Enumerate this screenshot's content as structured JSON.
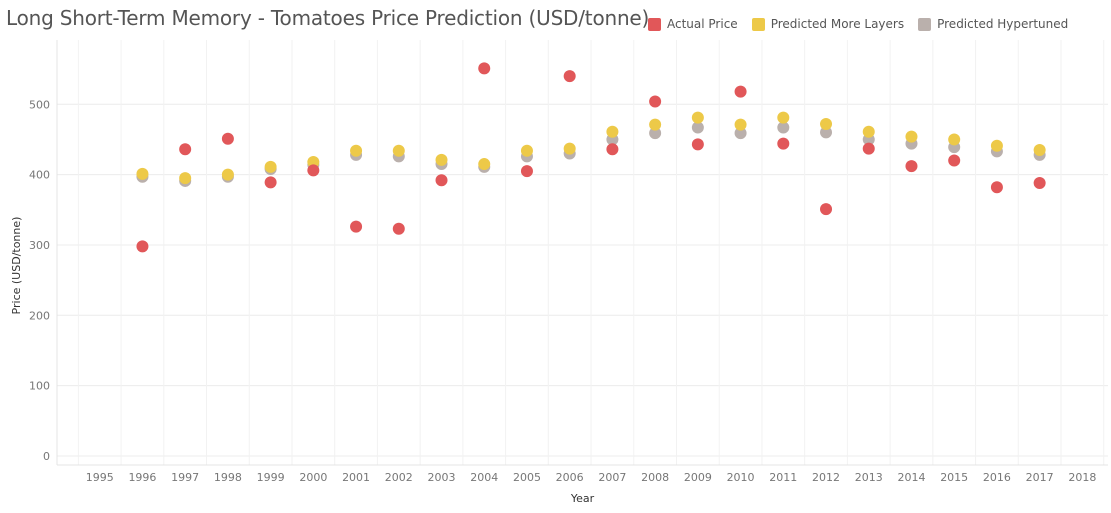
{
  "chart_data": {
    "type": "scatter",
    "title": "Long Short-Term Memory - Tomatoes Price Prediction (USD/tonne)",
    "xlabel": "Year",
    "ylabel": "Price (USD/tonne)",
    "xlim": [
      1994,
      2018.6
    ],
    "ylim": [
      -10,
      580
    ],
    "x_ticks": [
      1995,
      1996,
      1997,
      1998,
      1999,
      2000,
      2001,
      2002,
      2003,
      2004,
      2005,
      2006,
      2007,
      2008,
      2009,
      2010,
      2011,
      2012,
      2013,
      2014,
      2015,
      2016,
      2017,
      2018
    ],
    "y_ticks": [
      0,
      100,
      200,
      300,
      400,
      500
    ],
    "grid": true,
    "legend_position": "top-right",
    "series": [
      {
        "name": "Actual Price",
        "color": "#e15759",
        "points": [
          [
            1996,
            298
          ],
          [
            1997,
            436
          ],
          [
            1998,
            451
          ],
          [
            1999,
            389
          ],
          [
            2000,
            406
          ],
          [
            2001,
            326
          ],
          [
            2002,
            323
          ],
          [
            2003,
            392
          ],
          [
            2004,
            551
          ],
          [
            2005,
            405
          ],
          [
            2006,
            540
          ],
          [
            2007,
            436
          ],
          [
            2008,
            504
          ],
          [
            2009,
            443
          ],
          [
            2010,
            518
          ],
          [
            2011,
            444
          ],
          [
            2012,
            351
          ],
          [
            2013,
            437
          ],
          [
            2014,
            412
          ],
          [
            2015,
            420
          ],
          [
            2016,
            382
          ],
          [
            2017,
            388
          ]
        ]
      },
      {
        "name": "Predicted More Layers",
        "color": "#edc948",
        "points": [
          [
            1996,
            401
          ],
          [
            1997,
            395
          ],
          [
            1998,
            400
          ],
          [
            1999,
            411
          ],
          [
            2000,
            418
          ],
          [
            2001,
            434
          ],
          [
            2002,
            434
          ],
          [
            2003,
            421
          ],
          [
            2004,
            415
          ],
          [
            2005,
            434
          ],
          [
            2006,
            437
          ],
          [
            2007,
            461
          ],
          [
            2008,
            471
          ],
          [
            2009,
            481
          ],
          [
            2010,
            471
          ],
          [
            2011,
            481
          ],
          [
            2012,
            472
          ],
          [
            2013,
            461
          ],
          [
            2014,
            454
          ],
          [
            2015,
            450
          ],
          [
            2016,
            441
          ],
          [
            2017,
            435
          ]
        ]
      },
      {
        "name": "Predicted Hypertuned",
        "color": "#bab0ac",
        "points": [
          [
            1996,
            397
          ],
          [
            1997,
            391
          ],
          [
            1998,
            397
          ],
          [
            1999,
            408
          ],
          [
            2000,
            414
          ],
          [
            2001,
            428
          ],
          [
            2002,
            426
          ],
          [
            2003,
            415
          ],
          [
            2004,
            411
          ],
          [
            2005,
            426
          ],
          [
            2006,
            430
          ],
          [
            2007,
            450
          ],
          [
            2008,
            459
          ],
          [
            2009,
            467
          ],
          [
            2010,
            459
          ],
          [
            2011,
            467
          ],
          [
            2012,
            460
          ],
          [
            2013,
            450
          ],
          [
            2014,
            444
          ],
          [
            2015,
            439
          ],
          [
            2016,
            433
          ],
          [
            2017,
            428
          ]
        ]
      }
    ]
  }
}
